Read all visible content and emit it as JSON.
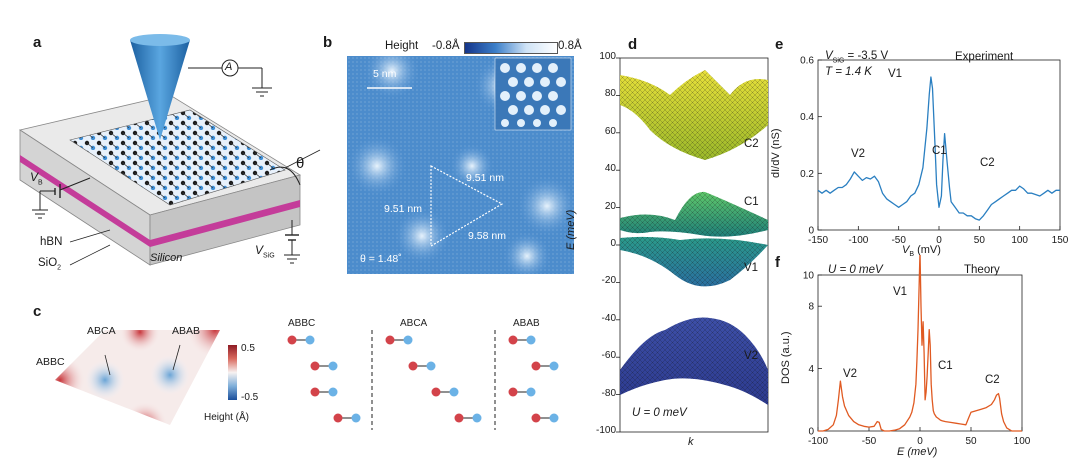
{
  "panels": {
    "a": {
      "letter": "a",
      "labels": {
        "amp": "A",
        "theta": "θ",
        "vb_main": "V",
        "vb_sub": "B",
        "hbn": "hBN",
        "sio2_main": "SiO",
        "sio2_sub": "2",
        "silicon": "Silicon",
        "vsig_main": "V",
        "vsig_sub": "SiG"
      }
    },
    "b": {
      "letter": "b",
      "height_label": "Height",
      "cbar_min": "-0.8Å",
      "cbar_max": "0.8Å",
      "scale_bar": "5 nm",
      "side1": "9.51 nm",
      "side2": "9.51 nm",
      "side3": "9.58 nm",
      "theta_text": "θ = 1.48˚"
    },
    "c": {
      "letter": "c",
      "site_labels": {
        "abbc": "ABBC",
        "abca": "ABCA",
        "abab": "ABAB"
      },
      "cbar_max": "0.5",
      "cbar_min": "-0.5",
      "cbar_title": "Height (Å)",
      "stacks": [
        "ABBC",
        "ABCA",
        "ABAB"
      ]
    },
    "d": {
      "letter": "d",
      "ylabel": "E (meV)",
      "xlabel": "k",
      "yticks": [
        "100",
        "80",
        "60",
        "40",
        "20",
        "0",
        "-20",
        "-40",
        "-60",
        "-80",
        "-100"
      ],
      "band_labels": [
        "C2",
        "C1",
        "V1",
        "V2"
      ],
      "note": "U = 0 meV"
    },
    "e": {
      "letter": "e",
      "vsig_main": "V",
      "vsig_sub": "SiG",
      "vsig_val": " = -3.5 V",
      "temp": "T = 1.4 K",
      "title": "Experiment",
      "ylabel": "dI/dV (nS)",
      "xlabel_main": "V",
      "xlabel_sub": "B",
      "xlabel_unit": " (mV)",
      "peaks": [
        "V1",
        "V2",
        "C1",
        "C2"
      ]
    },
    "f": {
      "letter": "f",
      "note": "U = 0 meV",
      "title": "Theory",
      "ylabel": "DOS (a.u.)",
      "xlabel": "E (meV)",
      "peaks": [
        "V1",
        "V2",
        "C1",
        "C2"
      ]
    }
  },
  "chart_data": [
    {
      "type": "line",
      "panel": "e",
      "title": "Experiment",
      "xlabel": "VB (mV)",
      "ylabel": "dI/dV (nS)",
      "xlim": [
        -150,
        150
      ],
      "ylim": [
        0,
        0.6
      ],
      "xticks": [
        -150,
        -100,
        -50,
        0,
        50,
        100,
        150
      ],
      "yticks": [
        0,
        0.2,
        0.4,
        0.6
      ],
      "color": "#2a7fc1",
      "x": [
        -150,
        -145,
        -140,
        -135,
        -130,
        -125,
        -120,
        -115,
        -110,
        -105,
        -100,
        -95,
        -90,
        -85,
        -80,
        -75,
        -70,
        -65,
        -60,
        -55,
        -50,
        -45,
        -40,
        -35,
        -30,
        -25,
        -20,
        -15,
        -12,
        -10,
        -8,
        -5,
        -3,
        0,
        3,
        5,
        7,
        10,
        13,
        15,
        20,
        25,
        30,
        35,
        40,
        45,
        50,
        55,
        60,
        65,
        70,
        75,
        80,
        85,
        90,
        95,
        100,
        105,
        110,
        115,
        120,
        125,
        130,
        135,
        140,
        145,
        150
      ],
      "y": [
        0.14,
        0.13,
        0.14,
        0.13,
        0.14,
        0.15,
        0.15,
        0.16,
        0.18,
        0.205,
        0.19,
        0.175,
        0.185,
        0.18,
        0.19,
        0.17,
        0.13,
        0.11,
        0.1,
        0.09,
        0.08,
        0.09,
        0.1,
        0.12,
        0.13,
        0.16,
        0.22,
        0.36,
        0.48,
        0.54,
        0.5,
        0.3,
        0.16,
        0.08,
        0.12,
        0.25,
        0.34,
        0.24,
        0.15,
        0.1,
        0.08,
        0.06,
        0.06,
        0.05,
        0.05,
        0.04,
        0.035,
        0.05,
        0.07,
        0.09,
        0.1,
        0.11,
        0.12,
        0.13,
        0.14,
        0.14,
        0.155,
        0.145,
        0.13,
        0.13,
        0.125,
        0.12,
        0.13,
        0.14,
        0.13,
        0.14,
        0.14
      ]
    },
    {
      "type": "line",
      "panel": "f",
      "title": "Theory",
      "xlabel": "E (meV)",
      "ylabel": "DOS (a.u.)",
      "xlim": [
        -100,
        100
      ],
      "ylim": [
        0,
        10
      ],
      "xticks": [
        -100,
        -50,
        0,
        50,
        100
      ],
      "yticks": [
        0,
        4,
        8,
        10
      ],
      "color": "#e05a22",
      "x": [
        -100,
        -95,
        -90,
        -85,
        -82,
        -80,
        -78,
        -76,
        -74,
        -70,
        -65,
        -60,
        -55,
        -50,
        -45,
        -42,
        -40,
        -38,
        -35,
        -30,
        -25,
        -20,
        -15,
        -10,
        -8,
        -6,
        -4,
        -3,
        -2,
        -1,
        0,
        1,
        2,
        3,
        4,
        5,
        6,
        7,
        8,
        9,
        10,
        11,
        12,
        13,
        14,
        15,
        16,
        18,
        20,
        22,
        25,
        30,
        35,
        40,
        45,
        48,
        50,
        55,
        60,
        65,
        70,
        73,
        75,
        77,
        78,
        79,
        80,
        82,
        85,
        90,
        95,
        100
      ],
      "y": [
        0,
        0,
        0.1,
        0.4,
        1,
        2,
        3.2,
        2.2,
        1.6,
        1,
        0.6,
        0.4,
        0.3,
        0.25,
        0.3,
        0.6,
        0.55,
        0.1,
        0,
        0,
        0.05,
        0.15,
        0.4,
        0.9,
        1.2,
        1.8,
        3,
        4.5,
        6.5,
        9,
        11.5,
        8,
        5.5,
        7,
        5,
        2,
        2.5,
        3.5,
        5,
        6.5,
        5.5,
        3,
        2,
        1.3,
        1.1,
        1,
        0.9,
        0.8,
        0.7,
        0.65,
        0.6,
        0.55,
        0.5,
        0.45,
        0.4,
        0.9,
        1.2,
        1.3,
        1.4,
        1.5,
        1.7,
        2,
        2.3,
        2.4,
        2.1,
        1.6,
        1.1,
        0.6,
        0.2,
        0,
        0,
        0
      ]
    }
  ],
  "colors": {
    "blue": "#2a7fc1",
    "orange": "#e05a22",
    "magenta": "#c43c9a",
    "red": "#c8363b"
  }
}
